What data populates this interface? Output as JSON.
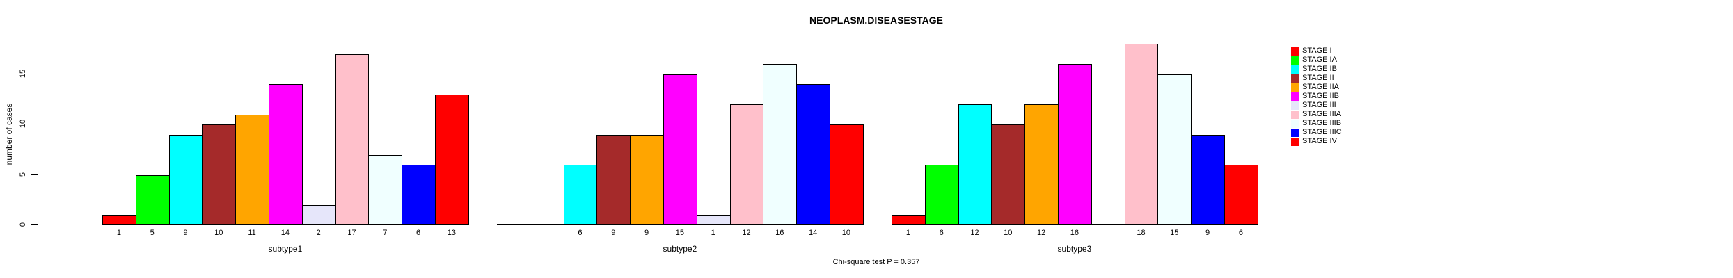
{
  "chart_data": {
    "type": "bar",
    "title": "NEOPLASM.DISEASESTAGE",
    "ylabel": "number of cases",
    "xlabel": "",
    "ylim": [
      0,
      18
    ],
    "yticks": [
      0,
      5,
      10,
      15
    ],
    "grid": false,
    "legend_position": "right",
    "annotation": "Chi-square test P = 0.357",
    "stages": [
      "STAGE I",
      "STAGE IA",
      "STAGE IB",
      "STAGE II",
      "STAGE IIA",
      "STAGE IIB",
      "STAGE III",
      "STAGE IIIA",
      "STAGE IIIB",
      "STAGE IIIC",
      "STAGE IV"
    ],
    "colors": [
      "#FF0000",
      "#00FF00",
      "#00FFFF",
      "#A52A2A",
      "#FFA500",
      "#FF00FF",
      "#E6E6FA",
      "#FFC0CB",
      "#F0FFFF",
      "#0000FF",
      "#FF0000"
    ],
    "categories": [
      "subtype1",
      "subtype2",
      "subtype3"
    ],
    "series_note": "each group shows one bar per stage; zero values are drawn as a flat baseline segment with no label",
    "groups": [
      {
        "name": "subtype1",
        "values": [
          1,
          5,
          9,
          10,
          11,
          14,
          2,
          17,
          7,
          6,
          13
        ],
        "labels": [
          "1",
          "5",
          "9",
          "10",
          "11",
          "14",
          "2",
          "17",
          "7",
          "6",
          "13"
        ]
      },
      {
        "name": "subtype2",
        "values": [
          0,
          0,
          6,
          9,
          9,
          15,
          1,
          12,
          16,
          14,
          10
        ],
        "labels": [
          "",
          "",
          "6",
          "9",
          "9",
          "15",
          "1",
          "12",
          "16",
          "14",
          "10"
        ]
      },
      {
        "name": "subtype3",
        "values": [
          1,
          6,
          12,
          10,
          12,
          16,
          0,
          18,
          15,
          9,
          6
        ],
        "labels": [
          "1",
          "6",
          "12",
          "10",
          "12",
          "16",
          "",
          "18",
          "15",
          "9",
          "6"
        ]
      }
    ]
  }
}
